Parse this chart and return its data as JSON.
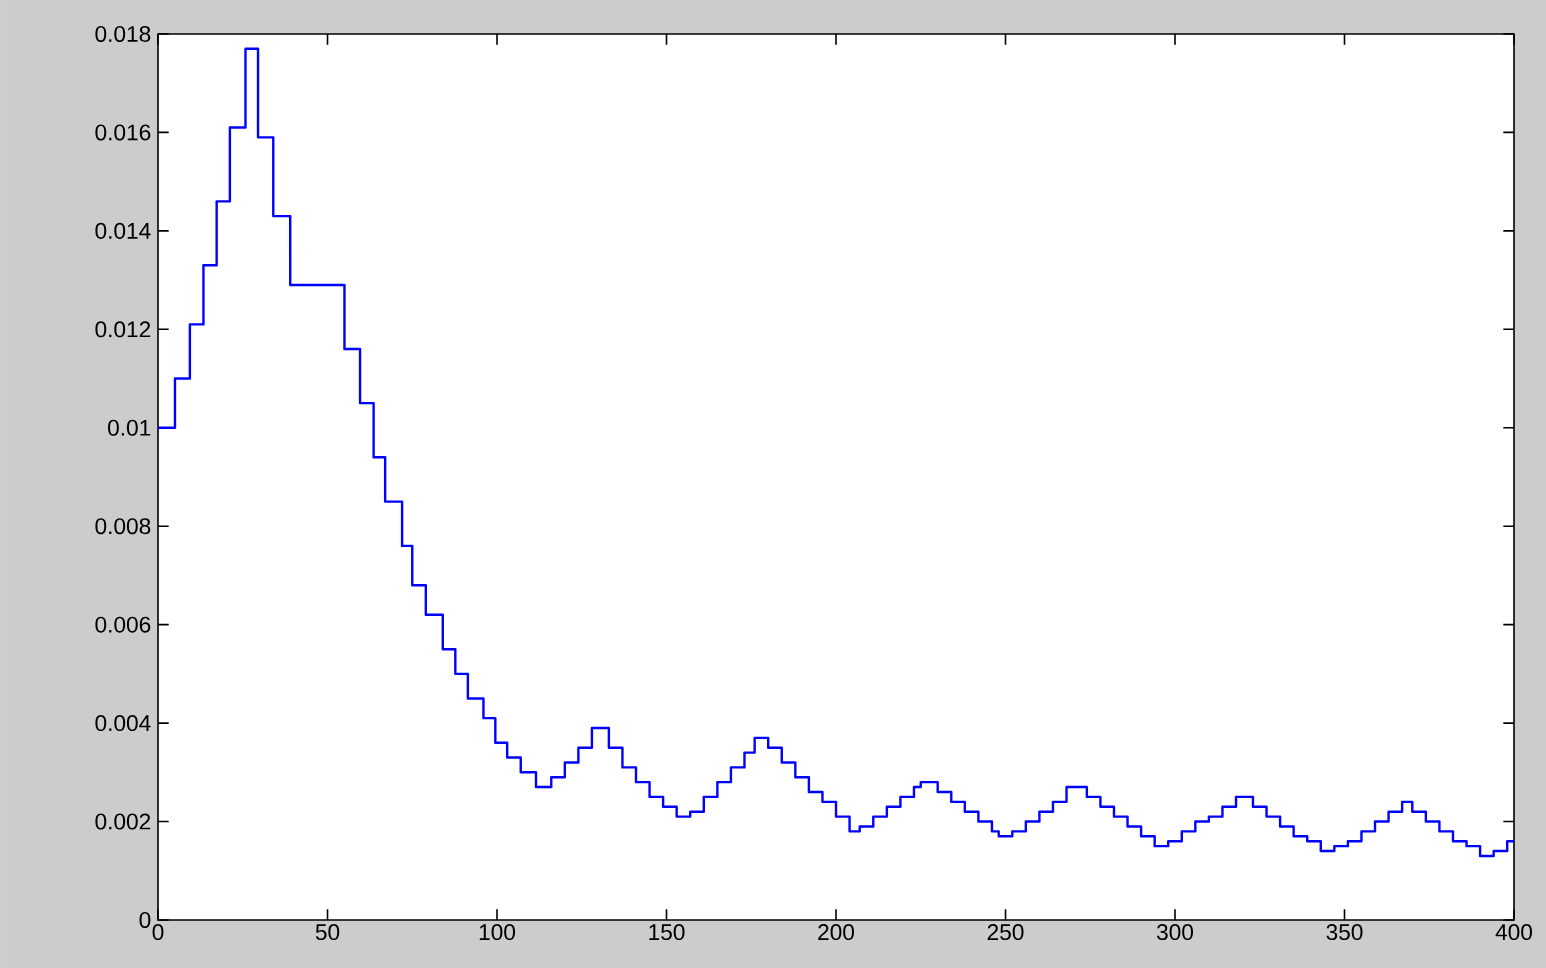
{
  "chart_data": {
    "type": "step",
    "color": "#0000ff",
    "x": [
      0,
      5,
      9.4,
      13.4,
      17.3,
      21.2,
      25.8,
      29.5,
      34,
      39,
      55,
      59.6,
      63.6,
      67,
      72,
      75,
      79,
      84,
      87.7,
      91.4,
      96,
      99.5,
      103,
      107,
      111.5,
      116,
      120,
      124,
      128,
      133,
      137,
      141,
      145,
      149,
      153,
      157,
      161,
      165,
      169,
      173,
      176,
      180,
      184,
      188,
      192,
      196,
      200,
      204,
      207,
      211,
      215,
      219,
      223,
      225,
      230,
      234,
      238,
      242,
      246,
      248,
      252,
      256,
      260,
      264,
      268,
      274,
      278,
      282,
      286,
      290,
      294,
      298,
      302,
      306,
      310,
      314,
      318,
      323,
      327,
      331,
      335,
      339,
      343,
      347,
      351,
      355,
      359,
      363,
      367,
      370,
      374,
      378,
      382,
      386,
      390,
      394,
      398,
      400
    ],
    "values": [
      0.01,
      0.011,
      0.0121,
      0.0133,
      0.0146,
      0.0161,
      0.0177,
      0.0159,
      0.0143,
      0.0129,
      0.0116,
      0.0105,
      0.0094,
      0.0085,
      0.0076,
      0.0068,
      0.0062,
      0.0055,
      0.005,
      0.0045,
      0.0041,
      0.0036,
      0.0033,
      0.003,
      0.0027,
      0.0029,
      0.0032,
      0.0035,
      0.0039,
      0.0035,
      0.0031,
      0.0028,
      0.0025,
      0.0023,
      0.0021,
      0.0022,
      0.0025,
      0.0028,
      0.0031,
      0.0034,
      0.0037,
      0.0035,
      0.0032,
      0.0029,
      0.0026,
      0.0024,
      0.0021,
      0.0018,
      0.0019,
      0.0021,
      0.0023,
      0.0025,
      0.0027,
      0.0028,
      0.0026,
      0.0024,
      0.0022,
      0.002,
      0.0018,
      0.0017,
      0.0018,
      0.002,
      0.0022,
      0.0024,
      0.0027,
      0.0025,
      0.0023,
      0.0021,
      0.0019,
      0.0017,
      0.0015,
      0.0016,
      0.0018,
      0.002,
      0.0021,
      0.0023,
      0.0025,
      0.0023,
      0.0021,
      0.0019,
      0.0017,
      0.0016,
      0.0014,
      0.0015,
      0.0016,
      0.0018,
      0.002,
      0.0022,
      0.0024,
      0.0022,
      0.002,
      0.0018,
      0.0016,
      0.0015,
      0.0013,
      0.0014,
      0.0016,
      0.0016
    ],
    "xlim": [
      0,
      400
    ],
    "ylim": [
      0,
      0.018
    ],
    "xticks": [
      0,
      50,
      100,
      150,
      200,
      250,
      300,
      350,
      400
    ],
    "yticks": [
      0,
      0.002,
      0.004,
      0.006,
      0.008,
      0.01,
      0.012,
      0.014,
      0.016,
      0.018
    ]
  }
}
